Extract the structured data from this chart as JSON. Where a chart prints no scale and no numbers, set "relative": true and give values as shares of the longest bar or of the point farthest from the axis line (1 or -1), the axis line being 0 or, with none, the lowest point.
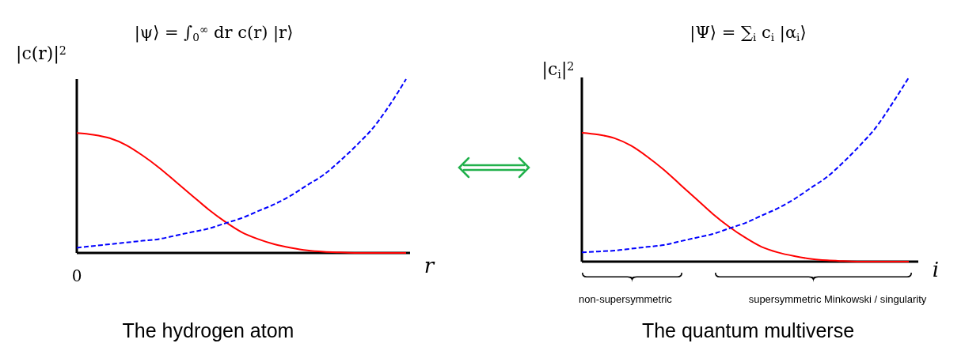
{
  "chart_data": [
    {
      "type": "line",
      "title": "|ψ⟩ = ∫$_{0}$$^{∞}$ dr c(r) |r⟩",
      "ylabel": "|c(r)|$^{2}$",
      "xlabel": "r",
      "relative": true,
      "categories": [
        null,
        null,
        null,
        null,
        null,
        null,
        null,
        null,
        null,
        null,
        null,
        null,
        null,
        null,
        null,
        null,
        null,
        null,
        null,
        null,
        null
      ],
      "series": [
        {
          "color": "#ff0000",
          "line_style": "solid",
          "values": [
            0.69,
            0.68,
            0.66,
            0.62,
            0.56,
            0.49,
            0.41,
            0.33,
            0.25,
            0.18,
            0.12,
            0.08,
            0.05,
            0.03,
            0.015,
            0.007,
            0.003,
            0,
            0,
            0,
            0
          ]
        },
        {
          "color": "#0000ff",
          "line_style": "dashed",
          "values": [
            0.03,
            0.04,
            0.05,
            0.06,
            0.07,
            0.08,
            0.1,
            0.12,
            0.14,
            0.17,
            0.2,
            0.24,
            0.28,
            0.33,
            0.39,
            0.45,
            0.53,
            0.62,
            0.72,
            0.85,
            1
          ]
        }
      ],
      "annotations": [
        "0",
        "The hydrogen atom"
      ]
    },
    {
      "type": "line",
      "title": "|Ψ⟩ = ∑$_{i}$ c$_{i}$ |α$_{i}$⟩",
      "ylabel": "|c$_{i}$|$^{2}$",
      "xlabel": "i",
      "relative": true,
      "categories": [
        null,
        null,
        null,
        null,
        null,
        null,
        null,
        null,
        null,
        null,
        null,
        null,
        null,
        null,
        null,
        null,
        null,
        null,
        null,
        null,
        null
      ],
      "series": [
        {
          "color": "#ff0000",
          "line_style": "solid",
          "values": [
            0.7,
            0.69,
            0.67,
            0.63,
            0.57,
            0.5,
            0.42,
            0.34,
            0.26,
            0.19,
            0.13,
            0.08,
            0.05,
            0.03,
            0.015,
            0.007,
            0.003,
            0,
            0,
            0,
            0
          ]
        },
        {
          "color": "#0000ff",
          "line_style": "dashed",
          "values": [
            0.05,
            0.055,
            0.06,
            0.07,
            0.08,
            0.09,
            0.11,
            0.13,
            0.15,
            0.18,
            0.21,
            0.25,
            0.29,
            0.34,
            0.4,
            0.46,
            0.54,
            0.63,
            0.73,
            0.86,
            1
          ]
        }
      ],
      "annotations": [
        "non-supersymmetric",
        "supersymmetric Minkowski / singularity",
        "The quantum multiverse"
      ]
    }
  ]
}
